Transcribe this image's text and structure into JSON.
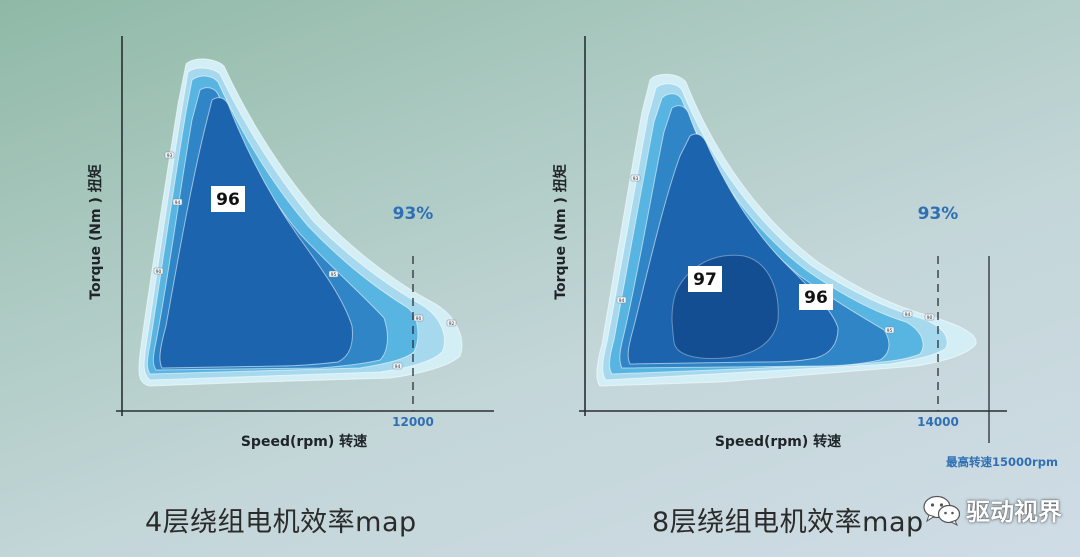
{
  "colors": {
    "band_outer": "#d4eef6",
    "band_92": "#a6d8ee",
    "band_93": "#58b4e0",
    "band_94": "#2f85c6",
    "band_96": "#1c64ad",
    "band_97": "#134e92",
    "tick_blue": "#2f6fb3"
  },
  "chart_data": [
    {
      "type": "contour",
      "ylabel": "Torque (Nm ) 扭矩",
      "xlabel": "Speed(rpm) 转速",
      "x_tick_label": "12000",
      "overall_label": "93%",
      "peak_label": "96",
      "contour_labels": [
        "93",
        "94",
        "90",
        "95",
        "92",
        "94"
      ],
      "caption": "4层绕组电机效率map"
    },
    {
      "type": "contour",
      "ylabel": "Torque (Nm ) 扭矩",
      "xlabel": "Speed(rpm) 转速",
      "x_tick_label": "14000",
      "max_speed_note": "最高转速15000rpm",
      "overall_label": "93%",
      "peak_label": "97",
      "secondary_label": "96",
      "contour_labels": [
        "93",
        "94",
        "96",
        "95",
        "94",
        "90"
      ],
      "caption": "8层绕组电机效率map"
    }
  ],
  "watermark": {
    "icon": "wechat-icon",
    "text": "驱动视界"
  }
}
